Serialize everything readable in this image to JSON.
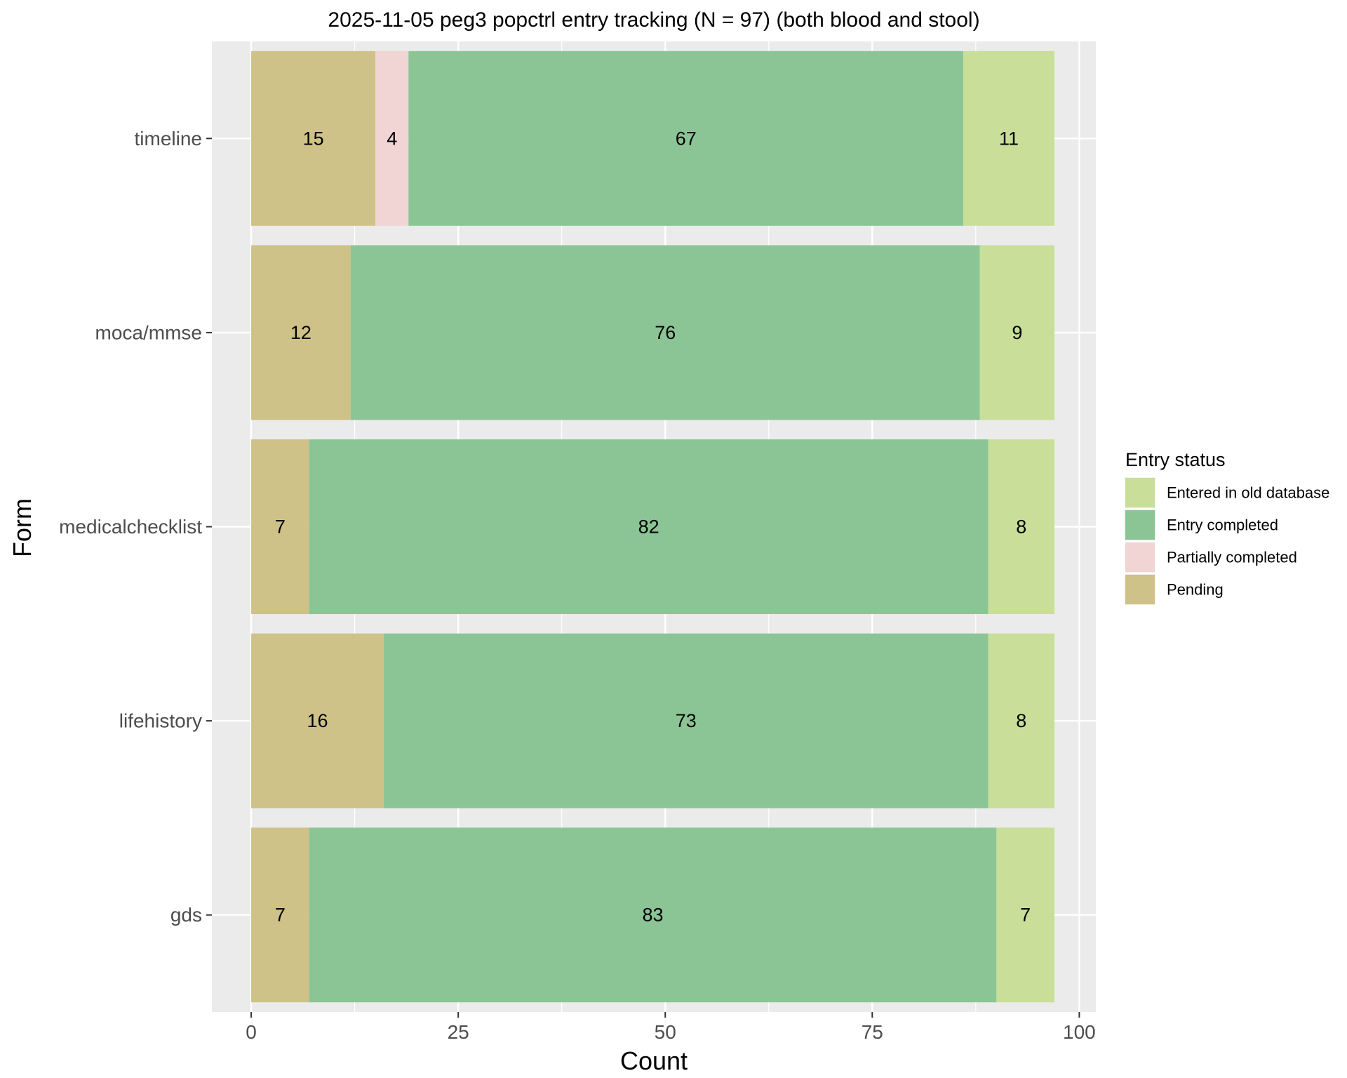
{
  "chart_data": {
    "type": "bar",
    "orientation": "horizontal",
    "stacked": true,
    "title": "2025-11-05 peg3 popctrl entry tracking (N = 97) (both blood and stool)",
    "xlabel": "Count",
    "ylabel": "Form",
    "xlim": [
      -4.75,
      102
    ],
    "x_ticks": [
      0,
      25,
      50,
      75,
      100
    ],
    "categories": [
      "timeline",
      "moca/mmse",
      "medicalchecklist",
      "lifehistory",
      "gds"
    ],
    "series": [
      {
        "name": "Pending",
        "color": "#cec288",
        "values": [
          15,
          12,
          7,
          16,
          7
        ]
      },
      {
        "name": "Partially completed",
        "color": "#f0d5d4",
        "values": [
          4,
          0,
          0,
          0,
          0
        ]
      },
      {
        "name": "Entry completed",
        "color": "#8bc595",
        "values": [
          67,
          76,
          82,
          73,
          83
        ]
      },
      {
        "name": "Entered in old database",
        "color": "#c9de98",
        "values": [
          11,
          9,
          8,
          8,
          7
        ]
      }
    ],
    "legend": {
      "title": "Entry status",
      "position": "right",
      "items": [
        "Entered in old database",
        "Entry completed",
        "Partially completed",
        "Pending"
      ]
    },
    "grid": true,
    "panel_color": "#ebebeb",
    "grid_color": "#ffffff"
  }
}
